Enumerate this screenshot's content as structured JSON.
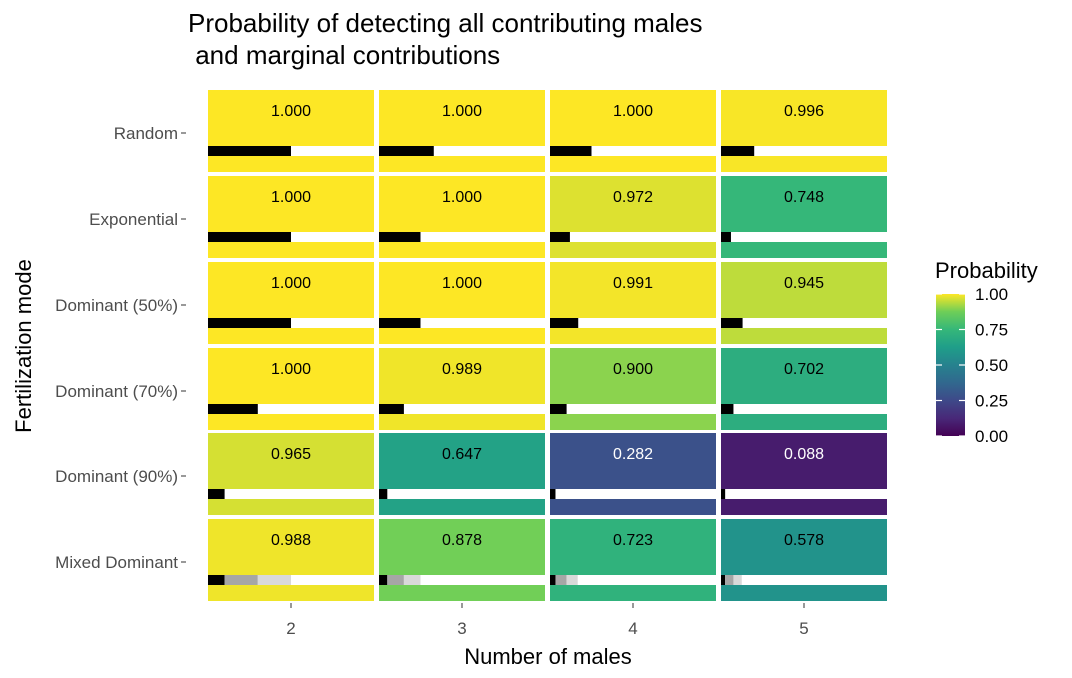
{
  "chart_data": {
    "type": "heatmap",
    "title": [
      "Probability of detecting all contributing males",
      " and marginal contributions"
    ],
    "xlabel": "Number of males",
    "ylabel": "Fertilization mode",
    "x": [
      "2",
      "3",
      "4",
      "5"
    ],
    "y": [
      "Random",
      "Exponential",
      "Dominant (50%)",
      "Dominant (70%)",
      "Dominant (90%)",
      "Mixed Dominant"
    ],
    "values": [
      [
        1.0,
        1.0,
        1.0,
        0.996
      ],
      [
        1.0,
        1.0,
        0.972,
        0.748
      ],
      [
        1.0,
        1.0,
        0.991,
        0.945
      ],
      [
        1.0,
        0.989,
        0.9,
        0.702
      ],
      [
        0.965,
        0.647,
        0.282,
        0.088
      ],
      [
        0.988,
        0.878,
        0.723,
        0.578
      ]
    ],
    "labels": [
      [
        "1.000",
        "1.000",
        "1.000",
        "0.996"
      ],
      [
        "1.000",
        "1.000",
        "0.972",
        "0.748"
      ],
      [
        "1.000",
        "1.000",
        "0.991",
        "0.945"
      ],
      [
        "1.000",
        "0.989",
        "0.900",
        "0.702"
      ],
      [
        "0.965",
        "0.647",
        "0.282",
        "0.088"
      ],
      [
        "0.988",
        "0.878",
        "0.723",
        "0.578"
      ]
    ],
    "marginal_contributions": [
      [
        [
          0.5
        ],
        [
          0.33
        ],
        [
          0.25
        ],
        [
          0.2
        ]
      ],
      [
        [
          0.5
        ],
        [
          0.25
        ],
        [
          0.12
        ],
        [
          0.06
        ]
      ],
      [
        [
          0.5
        ],
        [
          0.25
        ],
        [
          0.17
        ],
        [
          0.13
        ]
      ],
      [
        [
          0.3
        ],
        [
          0.15
        ],
        [
          0.1
        ],
        [
          0.075
        ]
      ],
      [
        [
          0.1
        ],
        [
          0.05
        ],
        [
          0.033
        ],
        [
          0.025
        ]
      ],
      [
        [
          0.1,
          0.2,
          0.2
        ],
        [
          0.05,
          0.1,
          0.1
        ],
        [
          0.033,
          0.067,
          0.067
        ],
        [
          0.025,
          0.05,
          0.05
        ]
      ]
    ],
    "contribution_colors": [
      "#000000",
      "#a6a6a6",
      "#d9d9d9"
    ],
    "legend": {
      "title": "Probability",
      "ticks": [
        1.0,
        0.75,
        0.5,
        0.25,
        0.0
      ],
      "tick_labels": [
        "1.00",
        "0.75",
        "0.50",
        "0.25",
        "0.00"
      ],
      "placement": "right"
    },
    "colorscale": "viridis",
    "zlim": [
      0,
      1
    ]
  }
}
